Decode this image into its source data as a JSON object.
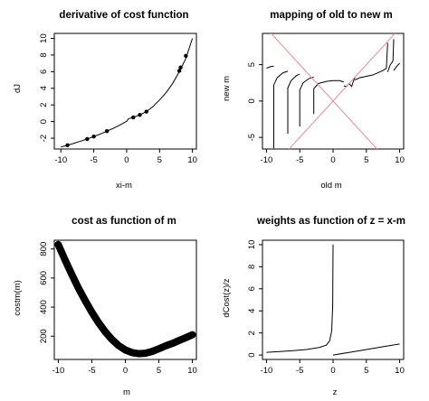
{
  "chart_data": [
    {
      "id": "p1",
      "type": "line",
      "title": "derivative of cost function",
      "xlabel": "xi-m",
      "ylabel": "dJ",
      "xlim": [
        -11,
        10.6
      ],
      "ylim": [
        -3.3,
        10.6
      ],
      "xticks": [
        -10,
        -5,
        0,
        5,
        10
      ],
      "yticks": [
        -2,
        0,
        2,
        4,
        6,
        8,
        10
      ],
      "grid": false,
      "series": [
        {
          "kind": "line",
          "color": "#000000",
          "x": [
            -10,
            -9,
            -8,
            -7,
            -6,
            -5,
            -4,
            -3,
            -2,
            -1,
            -0.3,
            0,
            0.3,
            1,
            2,
            3,
            4,
            5,
            6,
            7,
            8,
            9,
            10
          ],
          "y": [
            -3.05,
            -2.85,
            -2.6,
            -2.35,
            -2.1,
            -1.8,
            -1.5,
            -1.15,
            -0.8,
            -0.4,
            -0.1,
            0.05,
            0.35,
            0.5,
            0.8,
            1.2,
            1.8,
            2.6,
            3.5,
            4.6,
            6.0,
            7.6,
            10.0
          ]
        },
        {
          "kind": "points",
          "color": "#000000",
          "x": [
            -9,
            -6,
            -5,
            -3,
            1,
            2,
            3,
            8,
            8.2,
            9
          ],
          "y": [
            -2.85,
            -2.1,
            -1.8,
            -1.15,
            0.5,
            0.8,
            1.2,
            6.1,
            6.5,
            7.9
          ]
        }
      ]
    },
    {
      "id": "p2",
      "type": "line",
      "title": "mapping of old to new m",
      "xlabel": "old m",
      "ylabel": "new m",
      "xlim": [
        -10.6,
        10.6
      ],
      "ylim": [
        -6.6,
        9.3
      ],
      "xticks": [
        -10,
        -5,
        0,
        5,
        10
      ],
      "yticks": [
        -5,
        0,
        5
      ],
      "grid": false,
      "series": [
        {
          "kind": "line",
          "color": "#000000",
          "segments": [
            {
              "x": [
                -10,
                -9.5,
                -8.9
              ],
              "y": [
                4.5,
                4.7,
                4.8
              ]
            },
            {
              "x": [
                -8.9,
                -8.9,
                -8.4,
                -7.5,
                -6.8
              ],
              "y": [
                -6.5,
                2.2,
                3.2,
                3.9,
                4.1
              ]
            },
            {
              "x": [
                -6.8,
                -6.8,
                -6.3,
                -5.5,
                -5.0
              ],
              "y": [
                -4.5,
                1.8,
                2.8,
                3.5,
                3.7
              ]
            },
            {
              "x": [
                -5.0,
                -5.0,
                -4.5,
                -3.6,
                -2.9
              ],
              "y": [
                -3.5,
                1.5,
                2.5,
                3.1,
                3.3
              ]
            },
            {
              "x": [
                -2.9,
                -2.9,
                -2.2,
                -1.0,
                0.0,
                1.0,
                1.6
              ],
              "y": [
                -1.8,
                1.7,
                2.4,
                2.7,
                2.8,
                2.8,
                2.6
              ]
            },
            {
              "x": [
                1.6,
                2.0,
                2.4,
                2.8,
                3.0,
                3.3
              ],
              "y": [
                2.1,
                2.0,
                2.4,
                2.0,
                2.6,
                3.3
              ]
            },
            {
              "x": [
                3.3,
                4.0,
                6.0,
                7.5,
                8.0
              ],
              "y": [
                2.9,
                3.2,
                3.6,
                4.2,
                4.5
              ]
            },
            {
              "x": [
                8.0,
                8.2
              ],
              "y": [
                4.5,
                8.0
              ]
            },
            {
              "x": [
                8.2,
                8.6,
                9.0
              ],
              "y": [
                4.0,
                5.0,
                5.5
              ]
            },
            {
              "x": [
                9.0,
                9.1
              ],
              "y": [
                5.5,
                8.5
              ]
            },
            {
              "x": [
                9.1,
                9.6,
                10.0
              ],
              "y": [
                4.2,
                4.8,
                5.2
              ]
            }
          ]
        },
        {
          "kind": "line",
          "color": "#e48a9a",
          "x": [
            -10.6,
            10.6
          ],
          "y": [
            10.6,
            -10.6
          ]
        },
        {
          "kind": "line",
          "color": "#e48a9a",
          "x": [
            -10.6,
            10.6
          ],
          "y": [
            -10.6,
            10.6
          ]
        }
      ]
    },
    {
      "id": "p3",
      "type": "scatter",
      "title": "cost as function of m",
      "xlabel": "m",
      "ylabel": "costm(m)",
      "xlim": [
        -10.6,
        10.6
      ],
      "ylim": [
        40,
        860
      ],
      "xticks": [
        -10,
        -5,
        0,
        5,
        10
      ],
      "yticks": [
        200,
        400,
        600,
        800
      ],
      "grid": false,
      "series": [
        {
          "kind": "thick-curve",
          "color": "#000000",
          "x": [
            -10,
            -9,
            -8,
            -7,
            -6,
            -5,
            -4,
            -3,
            -2,
            -1,
            0,
            1,
            2,
            3,
            4,
            5,
            6,
            7,
            8,
            9,
            10
          ],
          "y": [
            830,
            725,
            625,
            530,
            445,
            365,
            293,
            230,
            177,
            135,
            105,
            87,
            80,
            83,
            95,
            113,
            133,
            150,
            170,
            190,
            210
          ]
        }
      ]
    },
    {
      "id": "p4",
      "type": "line",
      "title": "weights as function of z = x-m",
      "xlabel": "z",
      "ylabel": "dCost(z)/z",
      "xlim": [
        -10.6,
        10.6
      ],
      "ylim": [
        -0.4,
        10.4
      ],
      "xticks": [
        -10,
        -5,
        0,
        5,
        10
      ],
      "yticks": [
        0,
        2,
        4,
        6,
        8,
        10
      ],
      "grid": false,
      "series": [
        {
          "kind": "line",
          "color": "#000000",
          "segments": [
            {
              "x": [
                -10,
                -8,
                -6,
                -4,
                -2,
                -1,
                -0.5,
                -0.2,
                -0.05,
                0
              ],
              "y": [
                0.25,
                0.32,
                0.4,
                0.5,
                0.7,
                0.9,
                1.3,
                2.2,
                4.5,
                10.0
              ]
            },
            {
              "x": [
                0,
                2,
                4,
                6,
                8,
                10
              ],
              "y": [
                0.0,
                0.2,
                0.4,
                0.6,
                0.8,
                1.0
              ]
            }
          ]
        }
      ]
    }
  ]
}
